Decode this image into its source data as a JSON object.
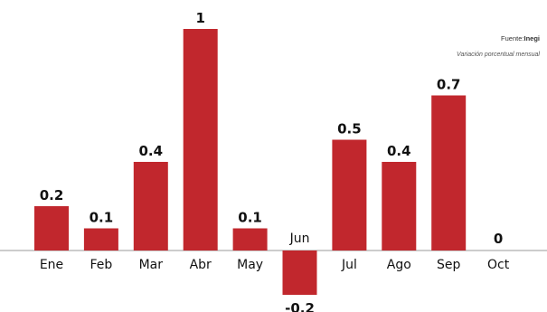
{
  "chart_data": {
    "type": "bar",
    "categories": [
      "Ene",
      "Feb",
      "Mar",
      "Abr",
      "May",
      "Jun",
      "Jul",
      "Ago",
      "Sep",
      "Oct"
    ],
    "values": [
      0.2,
      0.1,
      0.4,
      1,
      0.1,
      -0.2,
      0.5,
      0.4,
      0.7,
      0
    ],
    "value_labels": [
      "0.2",
      "0.1",
      "0.4",
      "1",
      "0.1",
      "-0.2",
      "0.5",
      "0.4",
      "0.7",
      "0"
    ],
    "source_prefix": "Fuente:",
    "source_name": "Inegi",
    "subtitle": "Variación porcentual mensual",
    "ylim": [
      -0.2,
      1
    ],
    "bar_color": "#c1272d",
    "grid": false,
    "legend": "none"
  }
}
